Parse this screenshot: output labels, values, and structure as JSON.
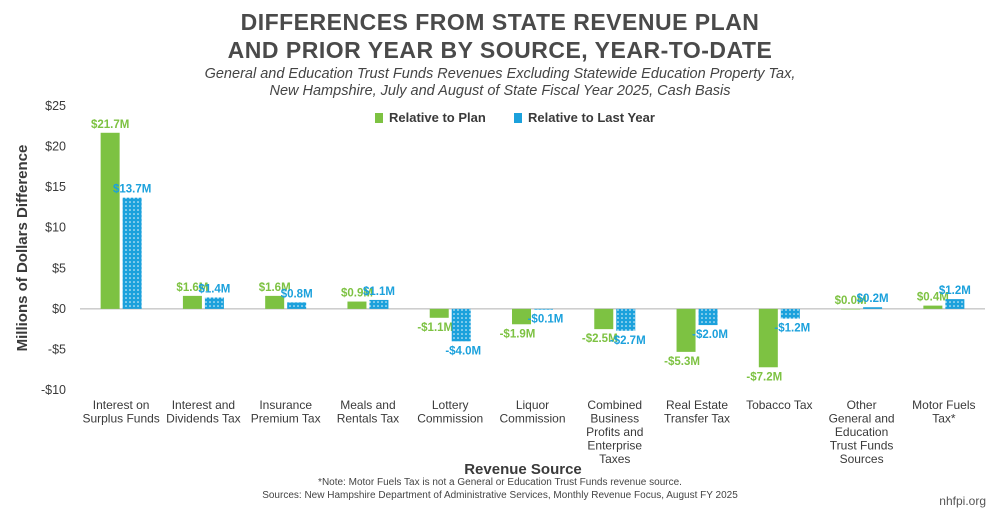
{
  "title_line1": "DIFFERENCES FROM STATE REVENUE PLAN",
  "title_line2": "AND PRIOR YEAR BY SOURCE, YEAR-TO-DATE",
  "subtitle_line1": "General and Education Trust Funds Revenues Excluding Statewide Education Property Tax,",
  "subtitle_line2": "New Hampshire, July and August of State Fiscal Year 2025, Cash Basis",
  "note": "*Note: Motor Fuels Tax is not a General or Education Trust Funds revenue source.",
  "sources": "Sources: New Hampshire Department of Administrative Services, Monthly Revenue Focus, August FY 2025",
  "brand": "nhfpi.org",
  "colors": {
    "plan": "#7dc242",
    "last_year": "#1ba1dc",
    "axis": "#b0b0b0",
    "text": "#3a3a3a"
  },
  "chart_data": {
    "type": "bar",
    "xlabel": "Revenue Source",
    "ylabel": "Millions of Dollars Difference",
    "ylim": [
      -10,
      25
    ],
    "yticks": [
      -10,
      -5,
      0,
      5,
      10,
      15,
      20,
      25
    ],
    "ytick_labels": [
      "-$10",
      "-$5",
      "$0",
      "$5",
      "$10",
      "$15",
      "$20",
      "$25"
    ],
    "legend_position": "top-center",
    "categories": [
      [
        "Interest on",
        "Surplus Funds"
      ],
      [
        "Interest and",
        "Dividends Tax"
      ],
      [
        "Insurance",
        "Premium Tax"
      ],
      [
        "Meals and",
        "Rentals Tax"
      ],
      [
        "Lottery",
        "Commission"
      ],
      [
        "Liquor",
        "Commission"
      ],
      [
        "Combined",
        "Business",
        "Profits and",
        "Enterprise",
        "Taxes"
      ],
      [
        "Real Estate",
        "Transfer Tax"
      ],
      [
        "Tobacco Tax"
      ],
      [
        "Other",
        "General and",
        "Education",
        "Trust Funds",
        "Sources"
      ],
      [
        "Motor Fuels",
        "Tax*"
      ]
    ],
    "series": [
      {
        "name": "Relative to Plan",
        "values": [
          21.7,
          1.6,
          1.6,
          0.9,
          -1.1,
          -1.9,
          -2.5,
          -5.3,
          -7.2,
          0.0,
          0.4
        ],
        "labels": [
          "$21.7M",
          "$1.6M",
          "$1.6M",
          "$0.9M",
          "-$1.1M",
          "-$1.9M",
          "-$2.5M",
          "-$5.3M",
          "-$7.2M",
          "$0.0M",
          "$0.4M"
        ]
      },
      {
        "name": "Relative to Last Year",
        "values": [
          13.7,
          1.4,
          0.8,
          1.1,
          -4.0,
          -0.1,
          -2.7,
          -2.0,
          -1.2,
          0.2,
          1.2
        ],
        "labels": [
          "$13.7M",
          "$1.4M",
          "$0.8M",
          "$1.1M",
          "-$4.0M",
          "-$0.1M",
          "-$2.7M",
          "-$2.0M",
          "-$1.2M",
          "$0.2M",
          "$1.2M"
        ]
      }
    ]
  }
}
